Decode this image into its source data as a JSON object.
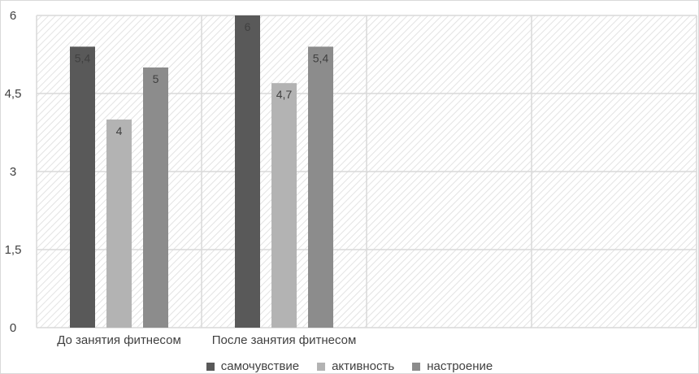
{
  "chart_data": {
    "type": "bar",
    "title": "",
    "xlabel": "",
    "ylabel": "",
    "categories": [
      "До занятия фитнесом",
      "После занятия фитнесом",
      "",
      ""
    ],
    "series": [
      {
        "name": "самочувствие",
        "values": [
          5.4,
          6,
          null,
          null
        ],
        "color": "#595959"
      },
      {
        "name": "активность",
        "values": [
          4,
          4.7,
          null,
          null
        ],
        "color": "#b3b3b3"
      },
      {
        "name": "настроение",
        "values": [
          5,
          5.4,
          null,
          null
        ],
        "color": "#8c8c8c"
      }
    ],
    "data_labels": [
      [
        "5,4",
        "6"
      ],
      [
        "4",
        "4,7"
      ],
      [
        "5",
        "5,4"
      ]
    ],
    "ylim": [
      0,
      6
    ],
    "yticks": [
      0,
      1.5,
      3,
      4.5,
      6
    ],
    "ytick_labels": [
      "0",
      "1,5",
      "3",
      "4,5",
      "6"
    ],
    "grid": true,
    "plot_area_pattern": "diagonal-hatch",
    "legend_position": "bottom"
  },
  "colors": {
    "grid": "#d9d9d9",
    "hatch": "#e0e0e0",
    "axis_text": "#404040",
    "label_text": "#404040"
  }
}
